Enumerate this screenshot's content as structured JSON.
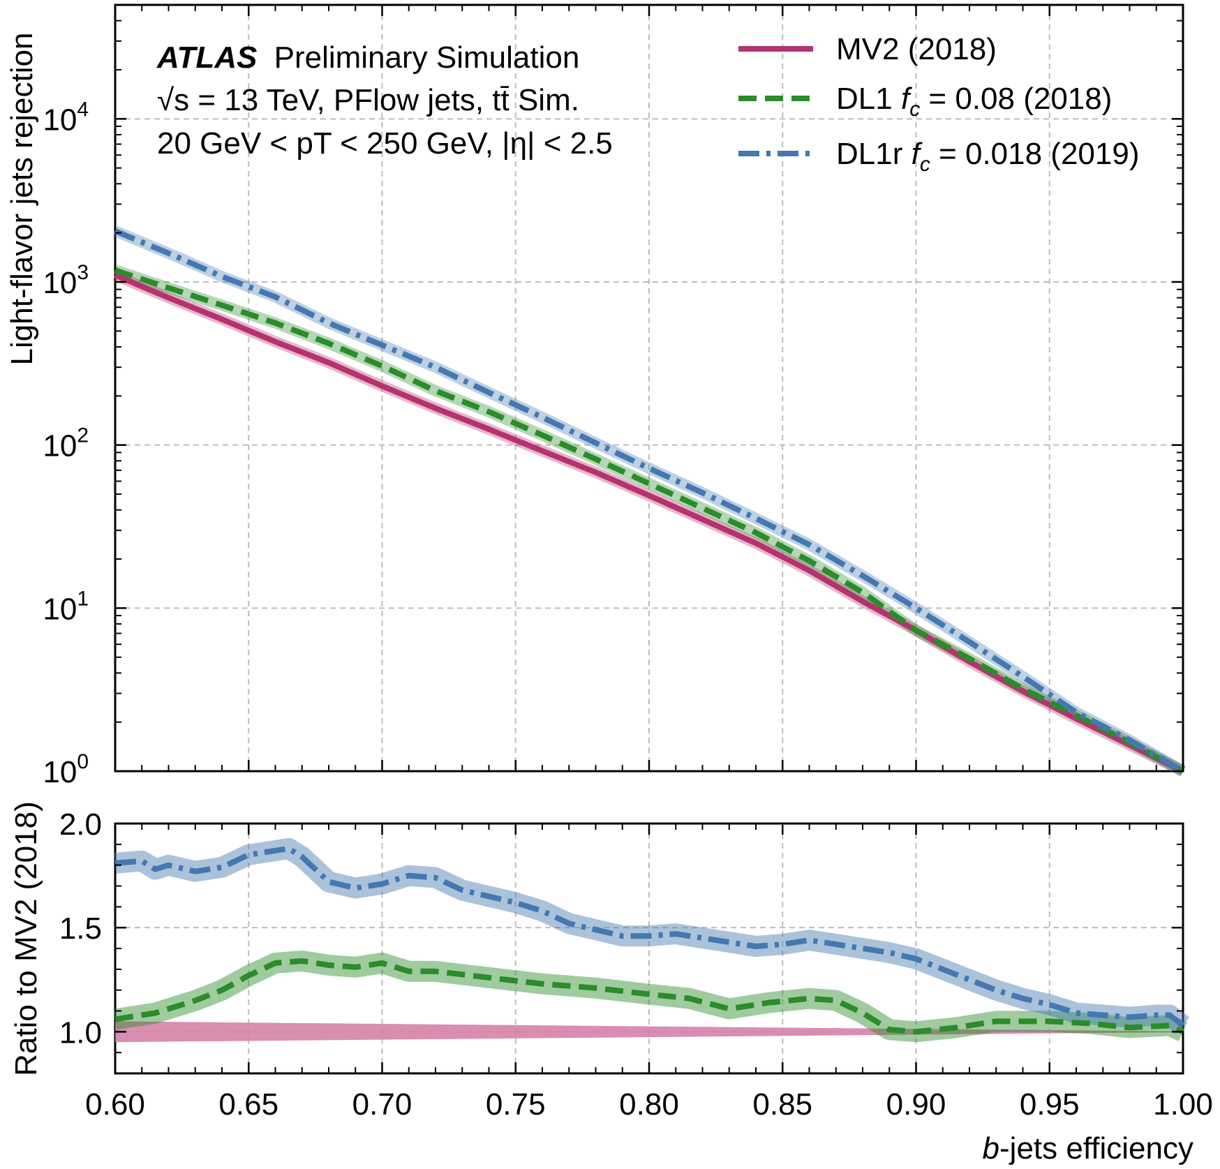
{
  "figure": {
    "annotation": {
      "experiment": "ATLAS",
      "status": "Preliminary Simulation",
      "line2": "√s = 13 TeV, PFlow jets, tt̄ Sim.",
      "line3": "20 GeV < pT < 250 GeV, |η| < 2.5"
    }
  },
  "chart_data": [
    {
      "type": "line",
      "panel": "main",
      "xlabel": "b-jets efficiency",
      "ylabel": "Light-flavor jets rejection",
      "xlim": [
        0.6,
        1.0
      ],
      "ylim": [
        1,
        50000
      ],
      "yscale": "log",
      "grid": true,
      "legend_position": "top-right",
      "x_ticks": [
        "0.60",
        "0.65",
        "0.70",
        "0.75",
        "0.80",
        "0.85",
        "0.90",
        "0.95",
        "1.00"
      ],
      "y_ticks": [
        {
          "value": 1,
          "base": "10",
          "exp": "0"
        },
        {
          "value": 10,
          "base": "10",
          "exp": "1"
        },
        {
          "value": 100,
          "base": "10",
          "exp": "2"
        },
        {
          "value": 1000,
          "base": "10",
          "exp": "3"
        },
        {
          "value": 10000,
          "base": "10",
          "exp": "4"
        }
      ],
      "series": [
        {
          "name": "MV2 (2018)",
          "color": "#b5326f",
          "style": "solid",
          "x": [
            0.6,
            0.62,
            0.64,
            0.66,
            0.68,
            0.7,
            0.72,
            0.74,
            0.76,
            0.78,
            0.8,
            0.82,
            0.84,
            0.86,
            0.88,
            0.9,
            0.92,
            0.94,
            0.96,
            0.98,
            1.0
          ],
          "y": [
            1100,
            800,
            590,
            430,
            320,
            230,
            168,
            125,
            92,
            68,
            49,
            35,
            25,
            17,
            11,
            7.3,
            4.7,
            3.1,
            2.1,
            1.45,
            1.0
          ]
        },
        {
          "name": "DL1 f_c = 0.08 (2018)",
          "label_main": "DL1 ",
          "label_sym": "f",
          "label_sub": "c",
          "label_rest": " = 0.08 (2018)",
          "color": "#2a8c2a",
          "style": "dashed",
          "x": [
            0.6,
            0.62,
            0.64,
            0.66,
            0.68,
            0.7,
            0.72,
            0.74,
            0.76,
            0.78,
            0.8,
            0.82,
            0.84,
            0.86,
            0.88,
            0.9,
            0.92,
            0.94,
            0.96,
            0.98,
            1.0
          ],
          "y": [
            1180,
            920,
            720,
            560,
            420,
            305,
            215,
            160,
            115,
            82,
            58,
            41,
            29,
            19.5,
            12.5,
            7.3,
            4.9,
            3.2,
            2.2,
            1.5,
            1.0
          ]
        },
        {
          "name": "DL1r f_c = 0.018 (2019)",
          "label_main": "DL1r ",
          "label_sym": "f",
          "label_sub": "c",
          "label_rest": " = 0.018 (2019)",
          "color": "#4478b0",
          "style": "dashdot",
          "x": [
            0.6,
            0.62,
            0.64,
            0.66,
            0.68,
            0.7,
            0.72,
            0.74,
            0.76,
            0.78,
            0.8,
            0.82,
            0.84,
            0.86,
            0.88,
            0.9,
            0.92,
            0.94,
            0.96,
            0.98,
            1.0
          ],
          "y": [
            2050,
            1500,
            1080,
            810,
            560,
            410,
            300,
            210,
            148,
            103,
            72,
            51,
            35.5,
            24.5,
            15.8,
            10.0,
            6.2,
            3.8,
            2.3,
            1.55,
            1.0
          ]
        }
      ]
    },
    {
      "type": "line",
      "panel": "ratio",
      "xlabel": "b-jets efficiency",
      "ylabel": "Ratio to MV2 (2018)",
      "xlim": [
        0.6,
        1.0
      ],
      "ylim": [
        0.8,
        2.0
      ],
      "grid": true,
      "x_ticks": [
        "0.60",
        "0.65",
        "0.70",
        "0.75",
        "0.80",
        "0.85",
        "0.90",
        "0.95",
        "1.00"
      ],
      "y_ticks": [
        "1.0",
        "1.5",
        "2.0"
      ],
      "series": [
        {
          "name": "MV2 (2018)",
          "color": "#d27aa4",
          "style": "band",
          "x": [
            0.6,
            1.0
          ],
          "y": [
            1.0,
            1.0
          ],
          "band": [
            0.05,
            0.002
          ]
        },
        {
          "name": "DL1 f_c = 0.08 (2018)",
          "color": "#2a8c2a",
          "style": "dashed",
          "x": [
            0.6,
            0.615,
            0.63,
            0.64,
            0.65,
            0.66,
            0.67,
            0.68,
            0.69,
            0.7,
            0.71,
            0.72,
            0.74,
            0.76,
            0.78,
            0.8,
            0.815,
            0.83,
            0.845,
            0.86,
            0.87,
            0.88,
            0.89,
            0.9,
            0.915,
            0.93,
            0.95,
            0.965,
            0.98,
            0.995,
            1.0
          ],
          "y": [
            1.06,
            1.09,
            1.15,
            1.2,
            1.27,
            1.33,
            1.34,
            1.32,
            1.31,
            1.33,
            1.29,
            1.29,
            1.26,
            1.23,
            1.21,
            1.18,
            1.16,
            1.11,
            1.14,
            1.16,
            1.15,
            1.09,
            1.01,
            1.0,
            1.02,
            1.05,
            1.05,
            1.04,
            1.02,
            1.03,
            1.0
          ]
        },
        {
          "name": "DL1r f_c = 0.018 (2019)",
          "color": "#4478b0",
          "style": "dashdot",
          "x": [
            0.6,
            0.61,
            0.615,
            0.62,
            0.63,
            0.64,
            0.65,
            0.66,
            0.665,
            0.67,
            0.68,
            0.69,
            0.7,
            0.71,
            0.72,
            0.73,
            0.74,
            0.75,
            0.76,
            0.77,
            0.78,
            0.79,
            0.8,
            0.81,
            0.82,
            0.83,
            0.84,
            0.85,
            0.86,
            0.87,
            0.88,
            0.89,
            0.9,
            0.91,
            0.92,
            0.93,
            0.94,
            0.95,
            0.96,
            0.97,
            0.98,
            0.99,
            0.995,
            1.0
          ],
          "y": [
            1.81,
            1.82,
            1.78,
            1.8,
            1.77,
            1.79,
            1.85,
            1.87,
            1.88,
            1.84,
            1.72,
            1.69,
            1.71,
            1.75,
            1.74,
            1.68,
            1.65,
            1.62,
            1.58,
            1.52,
            1.49,
            1.46,
            1.46,
            1.47,
            1.45,
            1.43,
            1.41,
            1.42,
            1.44,
            1.42,
            1.4,
            1.38,
            1.35,
            1.3,
            1.25,
            1.2,
            1.16,
            1.13,
            1.09,
            1.08,
            1.07,
            1.08,
            1.08,
            1.03
          ]
        }
      ]
    }
  ]
}
